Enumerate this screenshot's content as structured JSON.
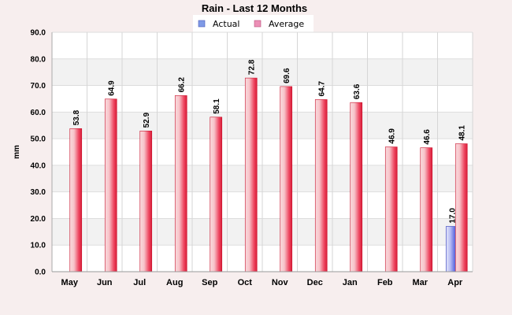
{
  "chart_data": {
    "type": "bar",
    "title": "Rain - Last 12 Months",
    "ylabel": "mm",
    "xlabel": "",
    "ylim": [
      0,
      90
    ],
    "ytick_step": 10,
    "y_tick_labels": [
      "0.0",
      "10.0",
      "20.0",
      "30.0",
      "40.0",
      "50.0",
      "60.0",
      "70.0",
      "80.0",
      "90.0"
    ],
    "grid": true,
    "legend_position": "top-center",
    "categories": [
      "May",
      "Jun",
      "Jul",
      "Aug",
      "Sep",
      "Oct",
      "Nov",
      "Dec",
      "Jan",
      "Feb",
      "Mar",
      "Apr"
    ],
    "series": [
      {
        "name": "Actual",
        "color": "#6f7fe0",
        "values": [
          null,
          null,
          null,
          null,
          null,
          null,
          null,
          null,
          null,
          null,
          null,
          17.0
        ],
        "labels": [
          "",
          "",
          "",
          "",
          "",
          "",
          "",
          "",
          "",
          "",
          "",
          "17.0"
        ]
      },
      {
        "name": "Average",
        "color": "#e8304a",
        "values": [
          53.8,
          64.9,
          52.9,
          66.2,
          58.1,
          72.8,
          69.6,
          64.7,
          63.6,
          46.9,
          46.6,
          48.1
        ],
        "labels": [
          "53.8",
          "64.9",
          "52.9",
          "66.2",
          "58.1",
          "72.8",
          "69.6",
          "64.7",
          "63.6",
          "46.9",
          "46.6",
          "48.1"
        ]
      }
    ]
  }
}
